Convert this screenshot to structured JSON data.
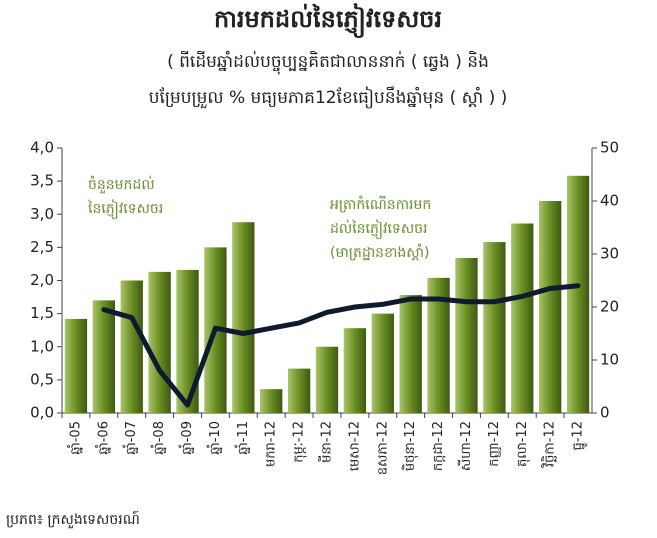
{
  "chart_data": {
    "type": "bar_line",
    "title": "ការមកដល់នៃភ្ញៀវទេសចរ",
    "subtitle": [
      "( ពីដើមឆ្នាំដល់បច្ចុប្បន្នគិតជាលាននាក់ ( ឆ្វេង ) និង",
      "បម្រែបម្រួល % មធ្យមភាគ12ខែធៀបនឹងឆ្នាំមុន ( ស្តាំ ) )"
    ],
    "annotations": [
      [
        "ចំនួនមកដល់",
        "នៃភ្ញៀវទេសចរ"
      ],
      [
        "អត្រាកំណើនការមក",
        "ដល់នៃភ្ញៀវទេសចរ",
        "(មាត្រដ្ឋានខាងស្តាំ)"
      ]
    ],
    "source": "ប្រភព៖ ក្រសួងទេសចរណ៍",
    "categories": [
      "ឆ្នាំ-05",
      "ឆ្នាំ-06",
      "ឆ្នាំ-07",
      "ឆ្នាំ-08",
      "ឆ្នាំ-09",
      "ឆ្នាំ-10",
      "ឆ្នាំ-11",
      "មករា-12",
      "កុម្ភៈ-12",
      "មីនា-12",
      "មេសា-12",
      "ឧសភា-12",
      "មិថុនា-12",
      "កក្កដា-12",
      "សីហា-12",
      "កញ្ញា-12",
      "តុលា-12",
      "វិច្ឆិកា-12",
      "ធ្នូ-12"
    ],
    "series": [
      {
        "color": "#6b8e23",
        "values": [
          1.42,
          1.7,
          2.0,
          2.13,
          2.16,
          2.5,
          2.88,
          0.36,
          0.67,
          1.0,
          1.28,
          1.5,
          1.78,
          2.04,
          2.34,
          2.58,
          2.86,
          3.2,
          3.58
        ]
      },
      {
        "color": "#0f1a2e",
        "axis": "y2",
        "values": [
          null,
          19.5,
          18,
          8,
          1.5,
          16,
          15,
          16,
          17,
          19,
          20,
          20.5,
          21.5,
          21.5,
          21,
          21,
          22,
          23.5,
          24
        ]
      }
    ],
    "ylim": [
      0,
      4
    ],
    "yticks": [
      {
        "value": 0,
        "label": "0,0"
      },
      {
        "value": 0.5,
        "label": "0,5"
      },
      {
        "value": 1,
        "label": "1,0"
      },
      {
        "value": 1.5,
        "label": "1,5"
      },
      {
        "value": 2,
        "label": "2,0"
      },
      {
        "value": 2.5,
        "label": "2,5"
      },
      {
        "value": 3,
        "label": "3,0"
      },
      {
        "value": 3.5,
        "label": "3,5"
      },
      {
        "value": 4,
        "label": "4,0"
      }
    ],
    "y2lim": [
      0,
      50
    ],
    "y2ticks": [
      0,
      10,
      20,
      30,
      40,
      50
    ]
  }
}
